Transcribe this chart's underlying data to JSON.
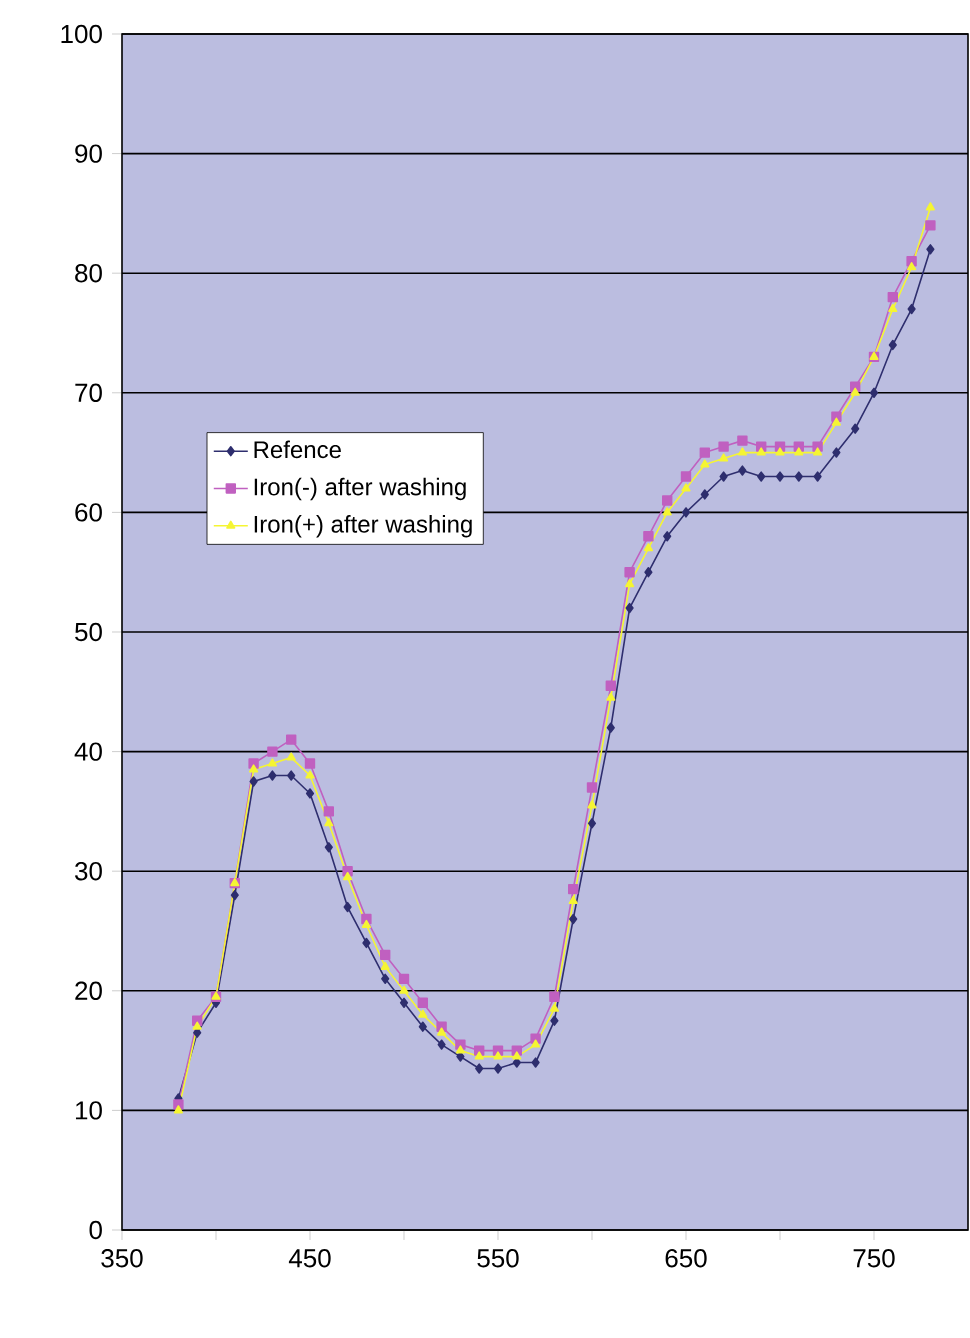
{
  "chart_data": {
    "type": "line",
    "x": [
      380,
      390,
      400,
      410,
      420,
      430,
      440,
      450,
      460,
      470,
      480,
      490,
      500,
      510,
      520,
      530,
      540,
      550,
      560,
      570,
      580,
      590,
      600,
      610,
      620,
      630,
      640,
      650,
      660,
      670,
      680,
      690,
      700,
      710,
      720,
      730,
      740,
      750,
      760,
      770,
      780
    ],
    "series": [
      {
        "name": "Refence",
        "color": "#2e2e6e",
        "marker": "diamond",
        "values": [
          11,
          16.5,
          19,
          28,
          37.5,
          38,
          38,
          36.5,
          32,
          27,
          24,
          21,
          19,
          17,
          15.5,
          14.5,
          13.5,
          13.5,
          14,
          14,
          17.5,
          26,
          34,
          42,
          52,
          55,
          58,
          60,
          61.5,
          63,
          63.5,
          63,
          63,
          63,
          63,
          65,
          67,
          70,
          74,
          77,
          82
        ]
      },
      {
        "name": "Iron(-) after washing",
        "color": "#c060c0",
        "marker": "square",
        "values": [
          10.5,
          17.5,
          19.5,
          29,
          39,
          40,
          41,
          39,
          35,
          30,
          26,
          23,
          21,
          19,
          17,
          15.5,
          15,
          15,
          15,
          16,
          19.5,
          28.5,
          37,
          45.5,
          55,
          58,
          61,
          63,
          65,
          65.5,
          66,
          65.5,
          65.5,
          65.5,
          65.5,
          68,
          70.5,
          73,
          78,
          81,
          84
        ]
      },
      {
        "name": "Iron(+) after washing",
        "color": "#f5f533",
        "marker": "triangle",
        "values": [
          10,
          17,
          19.5,
          29,
          38.5,
          39,
          39.5,
          38,
          34,
          29.5,
          25.5,
          22,
          20,
          18,
          16.5,
          15,
          14.5,
          14.5,
          14.5,
          15.5,
          18.5,
          27.5,
          35.5,
          44.5,
          54,
          57,
          60,
          62,
          64,
          64.5,
          65,
          65,
          65,
          65,
          65,
          67.5,
          70,
          73,
          77,
          80.5,
          85.5
        ]
      }
    ],
    "xlim": [
      350,
      800
    ],
    "ylim": [
      0,
      100
    ],
    "xticks": [
      350,
      {
        "value": 400,
        "label": null
      },
      450,
      {
        "value": 500,
        "label": null
      },
      550,
      {
        "value": 600,
        "label": null
      },
      650,
      {
        "value": 700,
        "label": null
      },
      750
    ],
    "yticks": [
      0,
      10,
      20,
      30,
      40,
      50,
      60,
      70,
      80,
      90,
      100
    ],
    "grid": "y",
    "legend": "left"
  }
}
